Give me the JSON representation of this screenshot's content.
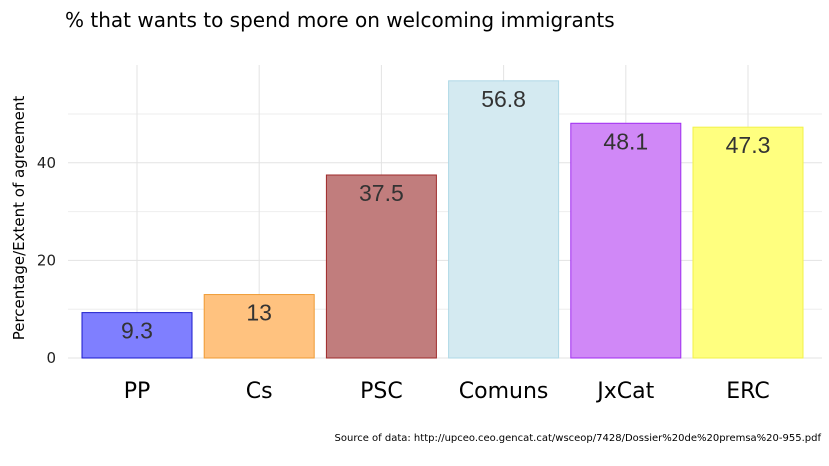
{
  "chart_data": {
    "type": "bar",
    "title": "% that wants to spend more on welcoming immigrants",
    "xlabel": "",
    "ylabel": "Percentage/Extent of agreement",
    "categories": [
      "PP",
      "Cs",
      "PSC",
      "Comuns",
      "JxCat",
      "ERC"
    ],
    "values": [
      9.3,
      13,
      37.5,
      56.8,
      48.1,
      47.3
    ],
    "value_labels": [
      "9.3",
      "13",
      "37.5",
      "56.8",
      "48.1",
      "47.3"
    ],
    "colors": [
      "#7f7fff",
      "#ffc27f",
      "#c17d7d",
      "#d4eaf1",
      "#d088f7",
      "#ffff7f"
    ],
    "border_colors": [
      "#1a1acc",
      "#ef9a33",
      "#9e2a2a",
      "#aed8e6",
      "#a02df0",
      "#f2f24a"
    ],
    "yticks": [
      0,
      20,
      40
    ],
    "ylim": [
      0,
      60
    ],
    "grid": true,
    "legend": "none"
  },
  "source_note": "Source of data: http://upceo.ceo.gencat.cat/wsceop/7428/Dossier%20de%20premsa%20-955.pdf"
}
